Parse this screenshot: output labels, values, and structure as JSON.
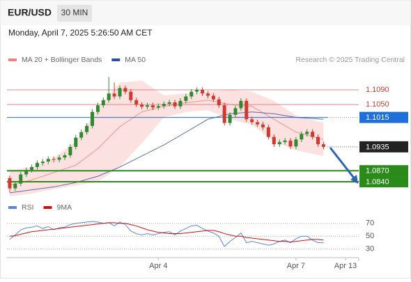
{
  "chart_data": {
    "type": "candlestick",
    "title": "EUR/USD",
    "timeframe": "30 MIN",
    "subtitle": "Monday, April 7, 2025 5:26:50 AM CET",
    "credit": "Research © 2025 Trading Central",
    "up_color": "#2f8a2f",
    "down_color": "#d03a2e",
    "open": [
      1.085,
      1.0822,
      1.0835,
      1.086,
      1.0872,
      1.088,
      1.0891,
      1.0895,
      1.0902,
      1.09,
      1.0906,
      1.0912,
      1.0935,
      1.096,
      1.0975,
      1.0992,
      1.103,
      1.1048,
      1.1062,
      1.108,
      1.1072,
      1.1095,
      1.1085,
      1.1062,
      1.105,
      1.1044,
      1.1048,
      1.1042,
      1.1046,
      1.1052,
      1.1056,
      1.1045,
      1.106,
      1.1072,
      1.1085,
      1.109,
      1.108,
      1.1074,
      1.1064,
      1.1048,
      1.1,
      1.1022,
      1.104,
      1.106,
      1.101,
      1.1002,
      1.0996,
      1.0988,
      1.0962,
      1.0942,
      1.0948,
      1.0952,
      1.0936,
      1.0955,
      1.097,
      1.0976,
      1.0962,
      1.0942
    ],
    "high": [
      1.0857,
      1.0842,
      1.0867,
      1.0879,
      1.0887,
      1.0898,
      1.0902,
      1.0909,
      1.0909,
      1.0913,
      1.0919,
      1.0942,
      1.0967,
      1.0982,
      1.0999,
      1.1037,
      1.1055,
      1.1069,
      1.1125,
      1.111,
      1.1102,
      1.1102,
      1.1092,
      1.1069,
      1.1057,
      1.1055,
      1.1055,
      1.1053,
      1.1059,
      1.1063,
      1.1063,
      1.1067,
      1.1079,
      1.1092,
      1.1097,
      1.1097,
      1.1087,
      1.1081,
      1.1071,
      1.1055,
      1.1029,
      1.1047,
      1.1067,
      1.1067,
      1.1017,
      1.1009,
      1.1003,
      1.0995,
      1.0969,
      1.0955,
      1.0959,
      1.0959,
      1.0962,
      1.0977,
      1.0983,
      1.0983,
      1.0969,
      1.0949
    ],
    "low": [
      1.0812,
      1.0815,
      1.0828,
      1.0853,
      1.0865,
      1.0873,
      1.0884,
      1.0888,
      1.0893,
      1.0893,
      1.0899,
      1.0905,
      1.0928,
      1.0953,
      1.0968,
      1.0985,
      1.1023,
      1.1041,
      1.1055,
      1.1065,
      1.1065,
      1.1078,
      1.1055,
      1.1043,
      1.1037,
      1.1037,
      1.1035,
      1.1035,
      1.1039,
      1.1045,
      1.1038,
      1.1038,
      1.1053,
      1.1065,
      1.1078,
      1.1073,
      1.1067,
      1.1057,
      1.1041,
      1.0993,
      1.0993,
      1.1015,
      1.1033,
      1.1003,
      1.0995,
      1.0989,
      1.0981,
      1.0955,
      1.0935,
      1.0935,
      1.0941,
      1.0929,
      1.0929,
      1.0948,
      1.0963,
      1.0955,
      1.0935,
      1.0928
    ],
    "close": [
      1.0822,
      1.0835,
      1.086,
      1.0872,
      1.088,
      1.0891,
      1.0895,
      1.0902,
      1.09,
      1.0906,
      1.0912,
      1.0935,
      1.096,
      1.0975,
      1.0992,
      1.103,
      1.1048,
      1.1062,
      1.108,
      1.1072,
      1.1095,
      1.1085,
      1.1062,
      1.105,
      1.1044,
      1.1048,
      1.1042,
      1.1046,
      1.1052,
      1.1056,
      1.1045,
      1.106,
      1.1072,
      1.1085,
      1.109,
      1.108,
      1.1074,
      1.1064,
      1.1048,
      1.1,
      1.1022,
      1.104,
      1.106,
      1.101,
      1.1002,
      1.0996,
      1.0988,
      1.0962,
      1.0942,
      1.0948,
      1.0952,
      1.0936,
      1.0955,
      1.097,
      1.0976,
      1.0962,
      1.0942,
      1.0935
    ],
    "xlim": [
      -0.5,
      63.4
    ],
    "xticks": [
      {
        "value": 27,
        "label": "Apr 4"
      },
      {
        "value": 52,
        "label": "Apr 7"
      },
      {
        "value": 61,
        "label": "Apr 13"
      }
    ],
    "ylim": [
      1.0795,
      1.1145
    ],
    "indicators": {
      "x": [
        0,
        4,
        8,
        12,
        16,
        20,
        24,
        28,
        32,
        36,
        40,
        44,
        48,
        52,
        57
      ],
      "series": [
        {
          "name": "MA 20 + Bollinger Bands",
          "color": "#f08080",
          "band_color": "#fbdada",
          "values": [
            1.083,
            1.0845,
            1.0865,
            1.0885,
            1.093,
            1.099,
            1.103,
            1.1045,
            1.1055,
            1.1062,
            1.105,
            1.1045,
            1.101,
            1.0975,
            1.0955
          ],
          "upper": [
            1.087,
            1.088,
            1.0905,
            1.095,
            1.104,
            1.111,
            1.1115,
            1.1075,
            1.108,
            1.1085,
            1.109,
            1.1085,
            1.106,
            1.102,
            1.1
          ],
          "lower": [
            1.08,
            1.0808,
            1.082,
            1.083,
            1.084,
            1.088,
            1.0945,
            1.1015,
            1.103,
            1.1035,
            1.101,
            1.0995,
            1.095,
            1.0925,
            1.091
          ]
        },
        {
          "name": "MA 50",
          "color": "#2d4f9e",
          "values": [
            1.081,
            1.0818,
            1.0826,
            1.0838,
            1.0855,
            1.088,
            1.091,
            1.094,
            1.0975,
            1.101,
            1.1025,
            1.103,
            1.1025,
            1.1015,
            1.101
          ]
        }
      ]
    },
    "levels": [
      {
        "value": 1.109,
        "label": "1.1090",
        "style": "resistance",
        "color": "#f08080"
      },
      {
        "value": 1.105,
        "label": "1.1050",
        "style": "resistance",
        "color": "#f08080"
      },
      {
        "value": 1.1015,
        "style": "ma",
        "color": "#1e6fd9"
      },
      {
        "value": 1.0935,
        "style": "current",
        "color": "#222222"
      },
      {
        "value": 1.087,
        "label": "1.0870",
        "style": "support",
        "color": "#2a8a1a"
      },
      {
        "value": 1.084,
        "label": "1.0840",
        "style": "support",
        "color": "#2a8a1a"
      }
    ],
    "rsi": {
      "ylim": [
        20,
        80
      ],
      "yticks": [
        70,
        50,
        30
      ],
      "series": [
        {
          "name": "RSI",
          "color": "#5b84d8",
          "values": [
            45,
            52,
            60,
            63,
            64,
            66,
            62,
            65,
            60,
            63,
            64,
            68,
            70,
            71,
            72,
            73,
            72,
            70,
            71,
            66,
            72,
            68,
            58,
            54,
            52,
            54,
            52,
            54,
            56,
            57,
            52,
            58,
            62,
            66,
            67,
            62,
            58,
            55,
            50,
            34,
            42,
            48,
            55,
            40,
            42,
            40,
            38,
            36,
            38,
            42,
            44,
            40,
            46,
            50,
            50,
            44,
            40,
            40
          ]
        },
        {
          "name": "9MA",
          "color": "#d01010",
          "values": [
            50,
            51,
            53,
            55,
            57,
            58,
            59,
            60,
            61,
            62,
            63,
            64,
            65,
            66,
            67,
            68,
            69,
            70,
            71,
            71,
            70,
            70,
            68,
            66,
            63,
            60,
            58,
            56,
            55,
            54,
            54,
            54,
            55,
            56,
            57,
            58,
            59,
            59,
            57,
            54,
            52,
            50,
            50,
            48,
            47,
            46,
            45,
            44,
            43,
            42,
            42,
            41,
            42,
            43,
            44,
            45,
            45,
            44
          ]
        }
      ]
    }
  }
}
